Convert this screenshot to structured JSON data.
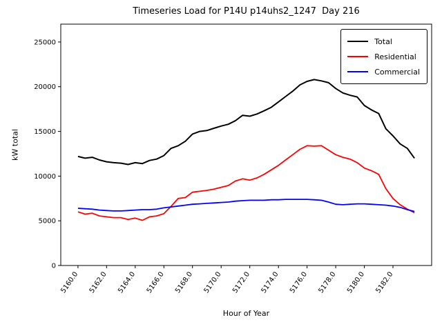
{
  "chart_data": {
    "type": "line",
    "title": "Timeseries Load for P14U p14uhs2_1247  Day 216",
    "xlabel": "Hour of Year",
    "ylabel": "kW total",
    "xlim": [
      5158.8,
      5184.7
    ],
    "ylim": [
      0,
      27000
    ],
    "xticks": [
      5160.0,
      5162.0,
      5164.0,
      5166.0,
      5168.0,
      5170.0,
      5172.0,
      5174.0,
      5176.0,
      5178.0,
      5180.0,
      5182.0
    ],
    "yticks": [
      0,
      5000,
      10000,
      15000,
      20000,
      25000
    ],
    "grid": false,
    "legend_position": "upper right",
    "x": [
      5160.0,
      5160.5,
      5161.0,
      5161.5,
      5162.0,
      5162.5,
      5163.0,
      5163.5,
      5164.0,
      5164.5,
      5165.0,
      5165.5,
      5166.0,
      5166.5,
      5167.0,
      5167.5,
      5168.0,
      5168.5,
      5169.0,
      5169.5,
      5170.0,
      5170.5,
      5171.0,
      5171.5,
      5172.0,
      5172.5,
      5173.0,
      5173.5,
      5174.0,
      5174.5,
      5175.0,
      5175.5,
      5176.0,
      5176.5,
      5177.0,
      5177.5,
      5178.0,
      5178.5,
      5179.0,
      5179.5,
      5180.0,
      5180.5,
      5181.0,
      5181.5,
      5182.0,
      5182.5,
      5183.0,
      5183.5
    ],
    "series": [
      {
        "name": "Total",
        "color": "#000000",
        "width": 2,
        "values": [
          12200,
          12000,
          12100,
          11800,
          11600,
          11500,
          11450,
          11300,
          11500,
          11400,
          11750,
          11900,
          12300,
          13100,
          13400,
          13900,
          14700,
          15000,
          15100,
          15350,
          15600,
          15800,
          16200,
          16800,
          16700,
          16950,
          17300,
          17700,
          18300,
          18900,
          19500,
          20200,
          20600,
          20800,
          20650,
          20450,
          19800,
          19300,
          19050,
          18850,
          17900,
          17400,
          17000,
          15300,
          14500,
          13600,
          13100,
          12000
        ]
      },
      {
        "name": "Residential",
        "color": "#ff0000",
        "width": 1.8,
        "values": [
          6000,
          5750,
          5850,
          5550,
          5450,
          5350,
          5350,
          5150,
          5300,
          5050,
          5450,
          5550,
          5800,
          6600,
          7500,
          7600,
          8200,
          8300,
          8400,
          8550,
          8750,
          8950,
          9450,
          9700,
          9550,
          9800,
          10200,
          10700,
          11200,
          11800,
          12400,
          13000,
          13400,
          13350,
          13400,
          12900,
          12400,
          12100,
          11900,
          11500,
          10900,
          10600,
          10200,
          8600,
          7500,
          6800,
          6300,
          5900
        ]
      },
      {
        "name": "Commercial",
        "color": "#0000ff",
        "width": 1.8,
        "values": [
          6400,
          6350,
          6300,
          6200,
          6150,
          6100,
          6100,
          6150,
          6200,
          6250,
          6250,
          6300,
          6450,
          6550,
          6650,
          6750,
          6850,
          6900,
          6950,
          7000,
          7050,
          7100,
          7200,
          7250,
          7300,
          7300,
          7300,
          7350,
          7350,
          7400,
          7400,
          7400,
          7400,
          7350,
          7300,
          7100,
          6850,
          6800,
          6850,
          6900,
          6900,
          6850,
          6800,
          6750,
          6650,
          6500,
          6250,
          6050
        ]
      }
    ]
  }
}
